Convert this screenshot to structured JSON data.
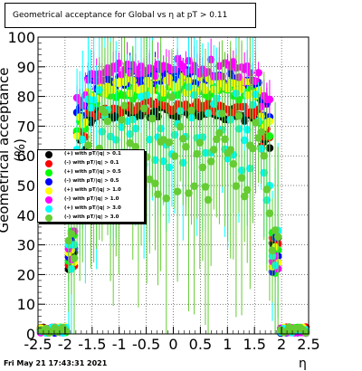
{
  "chart_data": {
    "type": "scatter",
    "title": "Geometrical acceptance for Global vs  η at pT > 0.11",
    "xlabel": "η",
    "ylabel": "Geometrical acceptance (%)",
    "xlim": [
      -2.5,
      2.5
    ],
    "ylim": [
      0,
      100
    ],
    "x_ticks": [
      "-2.5",
      "-2",
      "-1.5",
      "-1",
      "-0.5",
      "0",
      "0.5",
      "1",
      "1.5",
      "2",
      "2.5"
    ],
    "y_ticks": [
      "0",
      "10",
      "20",
      "30",
      "40",
      "50",
      "60",
      "70",
      "80",
      "90",
      "100"
    ],
    "grid": true,
    "legend_position": "middle-left",
    "series": [
      {
        "name": "(+) with pT/|q| > 0.1",
        "color": "#000000"
      },
      {
        "name": "(-) with pT/|q| > 0.1",
        "color": "#ff0000"
      },
      {
        "name": "(+) with pT/|q| > 0.5",
        "color": "#00ff00"
      },
      {
        "name": "(-) with pT/|q| > 0.5",
        "color": "#0000ff"
      },
      {
        "name": "(+) with pT/|q| > 1.0",
        "color": "#ffff00"
      },
      {
        "name": "(-) with pT/|q| > 1.0",
        "color": "#ff00ff"
      },
      {
        "name": "(+) with pT/|q| > 3.0",
        "color": "#00ffff"
      },
      {
        "name": "(-) with pT/|q| > 3.0",
        "color": "#66cc33"
      }
    ]
  },
  "footer": {
    "datestamp": "Fri May 21 17:43:31 2021"
  }
}
